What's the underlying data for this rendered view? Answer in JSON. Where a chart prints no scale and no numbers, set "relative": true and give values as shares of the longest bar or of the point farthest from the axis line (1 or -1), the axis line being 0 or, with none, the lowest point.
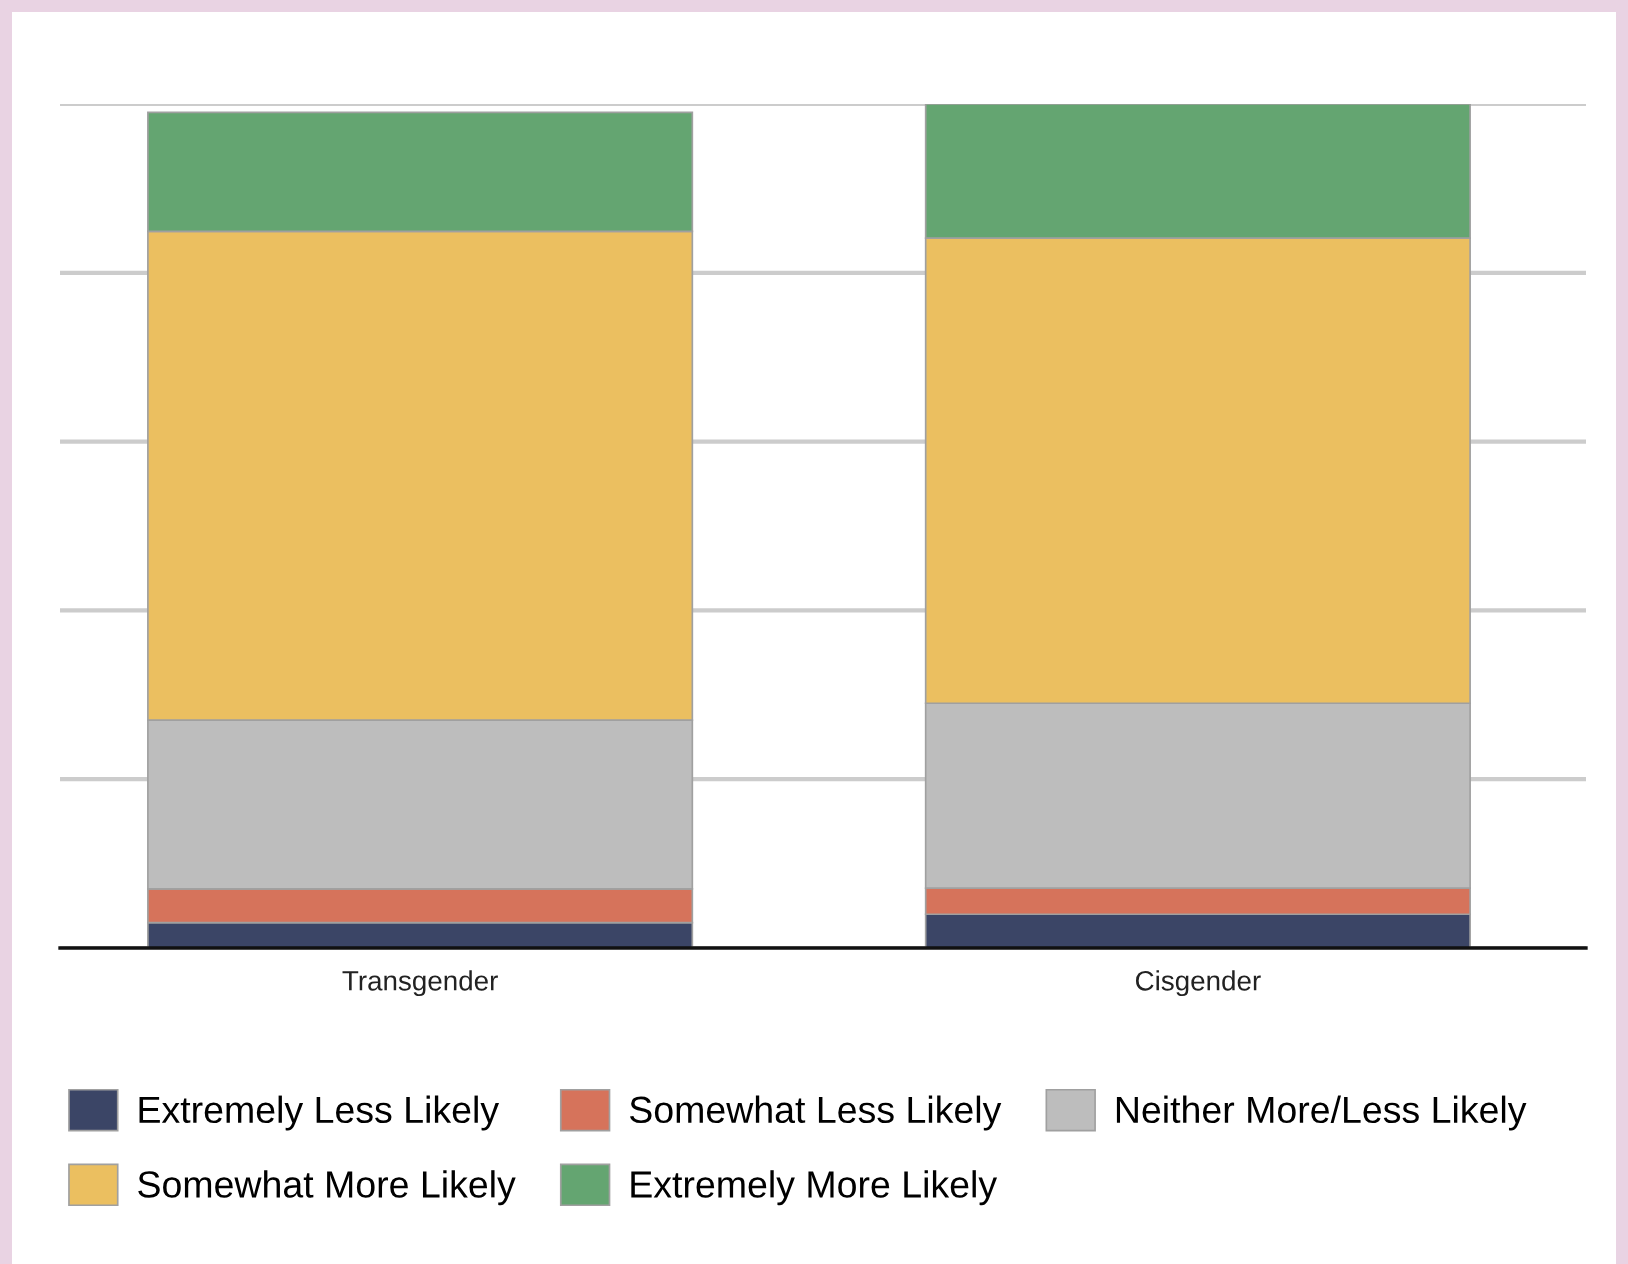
{
  "chart_data": {
    "type": "bar",
    "stacked": true,
    "relative": true,
    "categories": [
      "Transgender",
      "Cisgender"
    ],
    "series": [
      {
        "name": "Extremely Less Likely",
        "color": "#3b4566",
        "values": [
          0.03,
          0.04
        ]
      },
      {
        "name": "Somewhat Less Likely",
        "color": "#d6735b",
        "values": [
          0.04,
          0.031
        ]
      },
      {
        "name": "Neither More/Less Likely",
        "color": "#bdbdbd",
        "values": [
          0.2,
          0.219
        ]
      },
      {
        "name": "Somewhat More Likely",
        "color": "#ebbf60",
        "values": [
          0.579,
          0.551
        ]
      },
      {
        "name": "Extremely More Likely",
        "color": "#64a571",
        "values": [
          0.141,
          0.159
        ]
      }
    ],
    "grid": "y",
    "legend": "bottom"
  }
}
